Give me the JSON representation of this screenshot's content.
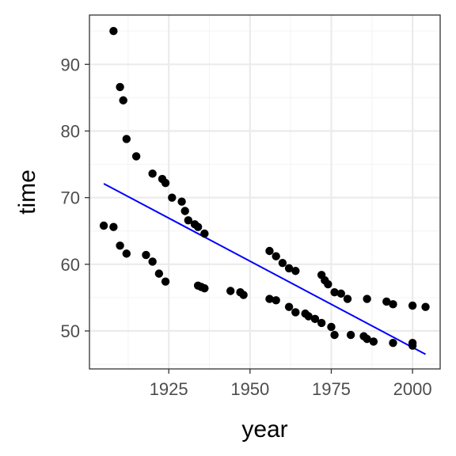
{
  "chart_data": {
    "type": "scatter",
    "title": "",
    "xlabel": "year",
    "ylabel": "time",
    "xlim": [
      1900.6,
      2008.5
    ],
    "ylim": [
      44.3,
      97.4
    ],
    "x_ticks": [
      1925,
      1950,
      1975,
      2000
    ],
    "x_minor_ticks": [
      1912.5,
      1937.5,
      1962.5,
      1987.5
    ],
    "y_ticks": [
      50,
      60,
      70,
      80,
      90
    ],
    "y_minor_ticks": [
      45,
      55,
      65,
      75,
      85,
      95
    ],
    "grid": true,
    "legend": "none",
    "colors": {
      "points": "#000000",
      "fit_line": "#0000ff",
      "panel_border": "#333333",
      "grid_major": "#ebebeb",
      "grid_minor": "#f5f5f5",
      "tick_text": "#4d4d4d"
    },
    "points": [
      {
        "x": 1905,
        "y": 65.8
      },
      {
        "x": 1908,
        "y": 95.0
      },
      {
        "x": 1908,
        "y": 65.6
      },
      {
        "x": 1910,
        "y": 86.6
      },
      {
        "x": 1910,
        "y": 62.8
      },
      {
        "x": 1911,
        "y": 84.6
      },
      {
        "x": 1912,
        "y": 78.8
      },
      {
        "x": 1912,
        "y": 61.6
      },
      {
        "x": 1915,
        "y": 76.2
      },
      {
        "x": 1918,
        "y": 61.4
      },
      {
        "x": 1920,
        "y": 73.6
      },
      {
        "x": 1920,
        "y": 60.4
      },
      {
        "x": 1922,
        "y": 58.6
      },
      {
        "x": 1923,
        "y": 72.8
      },
      {
        "x": 1924,
        "y": 72.2
      },
      {
        "x": 1924,
        "y": 57.4
      },
      {
        "x": 1926,
        "y": 70.0
      },
      {
        "x": 1929,
        "y": 69.4
      },
      {
        "x": 1930,
        "y": 68.0
      },
      {
        "x": 1931,
        "y": 66.6
      },
      {
        "x": 1933,
        "y": 66.0
      },
      {
        "x": 1934,
        "y": 65.6
      },
      {
        "x": 1934,
        "y": 56.8
      },
      {
        "x": 1935,
        "y": 56.6
      },
      {
        "x": 1936,
        "y": 64.6
      },
      {
        "x": 1936,
        "y": 56.4
      },
      {
        "x": 1944,
        "y": 56.0
      },
      {
        "x": 1947,
        "y": 55.8
      },
      {
        "x": 1948,
        "y": 55.4
      },
      {
        "x": 1956,
        "y": 62.0
      },
      {
        "x": 1956,
        "y": 54.8
      },
      {
        "x": 1958,
        "y": 61.2
      },
      {
        "x": 1958,
        "y": 54.6
      },
      {
        "x": 1960,
        "y": 60.2
      },
      {
        "x": 1962,
        "y": 59.4
      },
      {
        "x": 1962,
        "y": 53.6
      },
      {
        "x": 1964,
        "y": 59.0
      },
      {
        "x": 1964,
        "y": 52.8
      },
      {
        "x": 1967,
        "y": 52.6
      },
      {
        "x": 1968,
        "y": 52.2
      },
      {
        "x": 1970,
        "y": 51.8
      },
      {
        "x": 1972,
        "y": 58.4
      },
      {
        "x": 1972,
        "y": 51.2
      },
      {
        "x": 1973,
        "y": 57.6
      },
      {
        "x": 1974,
        "y": 57.0
      },
      {
        "x": 1975,
        "y": 50.6
      },
      {
        "x": 1976,
        "y": 55.8
      },
      {
        "x": 1976,
        "y": 49.4
      },
      {
        "x": 1978,
        "y": 55.6
      },
      {
        "x": 1980,
        "y": 54.8
      },
      {
        "x": 1981,
        "y": 49.4
      },
      {
        "x": 1985,
        "y": 49.2
      },
      {
        "x": 1986,
        "y": 54.8
      },
      {
        "x": 1986,
        "y": 48.8
      },
      {
        "x": 1988,
        "y": 48.4
      },
      {
        "x": 1992,
        "y": 54.4
      },
      {
        "x": 1994,
        "y": 54.0
      },
      {
        "x": 1994,
        "y": 48.2
      },
      {
        "x": 2000,
        "y": 53.8
      },
      {
        "x": 2000,
        "y": 48.2
      },
      {
        "x": 2000,
        "y": 47.8
      },
      {
        "x": 2004,
        "y": 53.6
      }
    ],
    "fit_line": {
      "x": [
        1905,
        2004
      ],
      "y": [
        72.1,
        46.5
      ]
    }
  }
}
